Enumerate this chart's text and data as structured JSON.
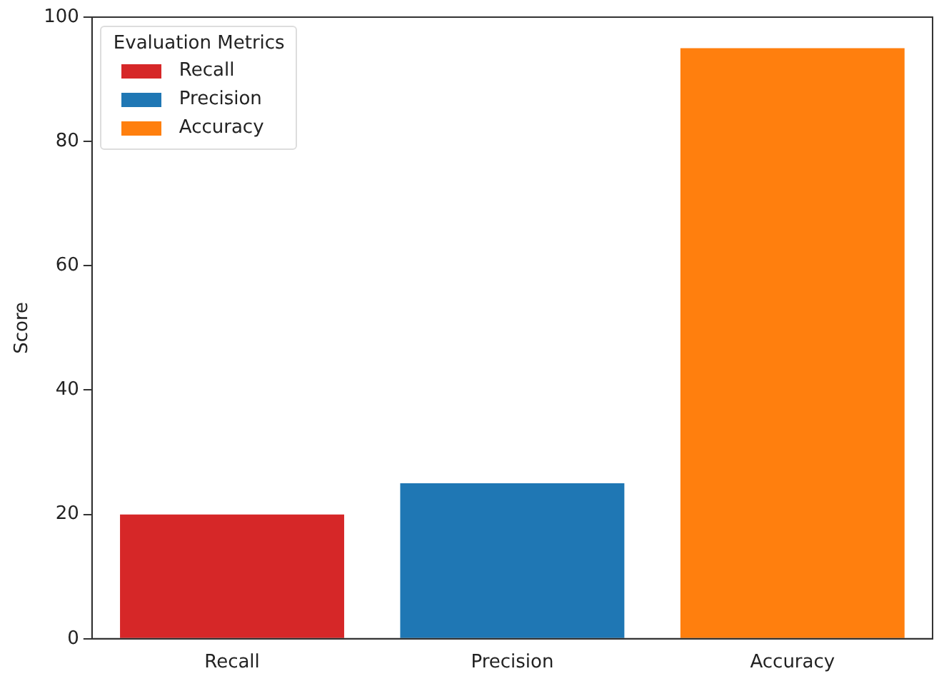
{
  "chart_data": {
    "type": "bar",
    "ylabel": "Score",
    "legend_title": "Evaluation Metrics",
    "categories": [
      "Recall",
      "Precision",
      "Accuracy"
    ],
    "series": [
      {
        "name": "Recall",
        "color": "#d62728",
        "values": [
          20,
          null,
          null
        ]
      },
      {
        "name": "Precision",
        "color": "#1f77b4",
        "values": [
          null,
          25,
          null
        ]
      },
      {
        "name": "Accuracy",
        "color": "#ff7f0e",
        "values": [
          null,
          null,
          95
        ]
      }
    ],
    "ylim": [
      0,
      100
    ],
    "yticks": [
      0,
      20,
      40,
      60,
      80,
      100
    ],
    "grid": false,
    "legend": "top left"
  }
}
